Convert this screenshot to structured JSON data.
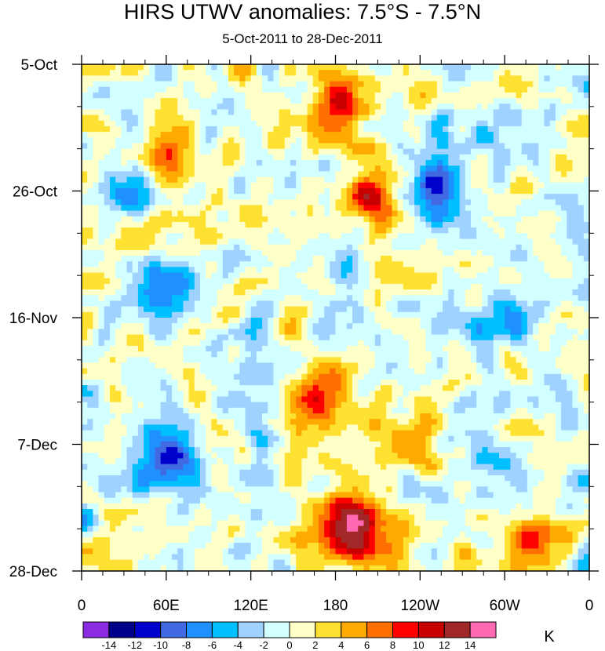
{
  "chart_data": {
    "type": "heatmap",
    "title": "HIRS UTWV anomalies: 7.5°S - 7.5°N",
    "subtitle": "5-Oct-2011 to 28-Dec-2011",
    "xlabel": "",
    "ylabel": "",
    "x_tick_labels": [
      "0",
      "60E",
      "120E",
      "180",
      "120W",
      "60W",
      "0"
    ],
    "y_tick_labels": [
      "5-Oct",
      "26-Oct",
      "16-Nov",
      "7-Dec",
      "28-Dec"
    ],
    "xlim_degrees_east": [
      0,
      360
    ],
    "time_range": [
      "5-Oct-2011",
      "28-Dec-2011"
    ],
    "colorbar": {
      "unit": "K",
      "levels": [
        -14,
        -12,
        -10,
        -8,
        -6,
        -4,
        -2,
        0,
        2,
        4,
        6,
        8,
        10,
        12,
        14
      ],
      "level_labels": [
        "-14",
        "-12",
        "-10",
        "-8",
        "-6",
        "-4",
        "-2",
        "0",
        "2",
        "4",
        "6",
        "8",
        "10",
        "12",
        "14"
      ],
      "colors": [
        "#8b2be2",
        "#00008b",
        "#0000cd",
        "#4169e1",
        "#1e90ff",
        "#00bfff",
        "#a0d2ff",
        "#d2ffff",
        "#ffffc8",
        "#ffe132",
        "#ffaa00",
        "#ff6e00",
        "#ff0000",
        "#c80000",
        "#a02828",
        "#ff69b4"
      ]
    },
    "features": [
      {
        "lon": 60,
        "day": 0.18,
        "value": 9,
        "r": 18
      },
      {
        "lon": 180,
        "day": 0.08,
        "value": 10,
        "r": 20
      },
      {
        "lon": 210,
        "day": 0.25,
        "value": 8,
        "r": 22
      },
      {
        "lon": 250,
        "day": 0.24,
        "value": -10,
        "r": 24
      },
      {
        "lon": 60,
        "day": 0.45,
        "value": -7,
        "r": 22
      },
      {
        "lon": 30,
        "day": 0.25,
        "value": -6,
        "r": 16
      },
      {
        "lon": 170,
        "day": 0.65,
        "value": 8,
        "r": 24
      },
      {
        "lon": 225,
        "day": 0.75,
        "value": 6,
        "r": 22
      },
      {
        "lon": 60,
        "day": 0.78,
        "value": -11,
        "r": 22
      },
      {
        "lon": 190,
        "day": 0.92,
        "value": 14,
        "r": 26
      },
      {
        "lon": 320,
        "day": 0.95,
        "value": 9,
        "r": 18
      },
      {
        "lon": 290,
        "day": 0.5,
        "value": -5,
        "r": 20
      },
      {
        "lon": 120,
        "day": 0.6,
        "value": -3,
        "r": 28
      },
      {
        "lon": 350,
        "day": 0.3,
        "value": -5,
        "r": 14
      }
    ]
  }
}
